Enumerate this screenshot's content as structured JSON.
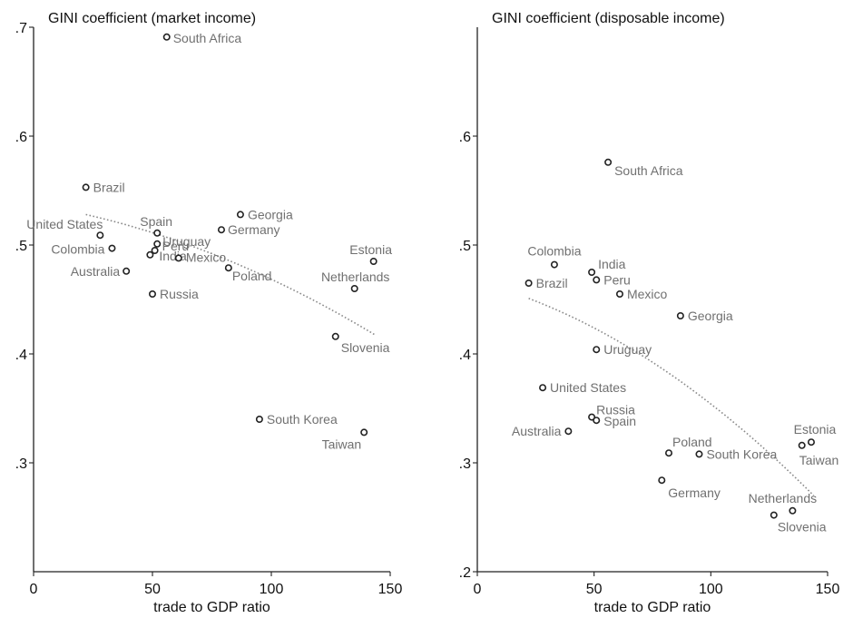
{
  "chart_data": [
    {
      "type": "scatter",
      "title": "GINI coefficient (market income)",
      "xlabel": "trade to GDP ratio",
      "ylabel": "",
      "xlim": [
        0,
        150
      ],
      "ylim": [
        0.2,
        0.7
      ],
      "xticks": [
        0,
        50,
        100,
        150
      ],
      "yticks": [
        0.3,
        0.4,
        0.5,
        0.6,
        0.7
      ],
      "xtick_labels": [
        "0",
        "50",
        "100",
        "150"
      ],
      "ytick_labels": [
        ".3",
        ".4",
        ".5",
        ".6",
        ".7"
      ],
      "grid": false,
      "fit_line": {
        "style": "dotted",
        "x": [
          22,
          144
        ],
        "y": [
          0.528,
          0.417
        ]
      },
      "points": [
        {
          "label": "South Africa",
          "x": 56,
          "y": 0.691
        },
        {
          "label": "Brazil",
          "x": 22,
          "y": 0.553
        },
        {
          "label": "United States",
          "x": 28,
          "y": 0.509
        },
        {
          "label": "Spain",
          "x": 52,
          "y": 0.511
        },
        {
          "label": "Uruguay",
          "x": 52,
          "y": 0.501
        },
        {
          "label": "Colombia",
          "x": 33,
          "y": 0.497
        },
        {
          "label": "Peru",
          "x": 51,
          "y": 0.495
        },
        {
          "label": "India",
          "x": 49,
          "y": 0.491
        },
        {
          "label": "Australia",
          "x": 39,
          "y": 0.476
        },
        {
          "label": "Mexico",
          "x": 61,
          "y": 0.488
        },
        {
          "label": "Georgia",
          "x": 87,
          "y": 0.528
        },
        {
          "label": "Germany",
          "x": 79,
          "y": 0.514
        },
        {
          "label": "Poland",
          "x": 82,
          "y": 0.479
        },
        {
          "label": "Estonia",
          "x": 143,
          "y": 0.485
        },
        {
          "label": "Netherlands",
          "x": 135,
          "y": 0.46
        },
        {
          "label": "Russia",
          "x": 50,
          "y": 0.455
        },
        {
          "label": "Slovenia",
          "x": 127,
          "y": 0.416
        },
        {
          "label": "South Korea",
          "x": 95,
          "y": 0.34
        },
        {
          "label": "Taiwan",
          "x": 139,
          "y": 0.328
        }
      ]
    },
    {
      "type": "scatter",
      "title": "GINI coefficient (disposable income)",
      "xlabel": "trade to GDP ratio",
      "ylabel": "",
      "xlim": [
        0,
        150
      ],
      "ylim": [
        0.2,
        0.7
      ],
      "xticks": [
        0,
        50,
        100,
        150
      ],
      "yticks": [
        0.2,
        0.3,
        0.4,
        0.5,
        0.6
      ],
      "xtick_labels": [
        "0",
        "50",
        "100",
        "150"
      ],
      "ytick_labels": [
        ".2",
        ".3",
        ".4",
        ".5",
        ".6"
      ],
      "grid": false,
      "fit_line": {
        "style": "dotted",
        "x": [
          22,
          144
        ],
        "y": [
          0.451,
          0.27
        ]
      },
      "points": [
        {
          "label": "South Africa",
          "x": 56,
          "y": 0.576
        },
        {
          "label": "Colombia",
          "x": 33,
          "y": 0.482
        },
        {
          "label": "India",
          "x": 49,
          "y": 0.475
        },
        {
          "label": "Peru",
          "x": 51,
          "y": 0.468
        },
        {
          "label": "Brazil",
          "x": 22,
          "y": 0.465
        },
        {
          "label": "Mexico",
          "x": 61,
          "y": 0.455
        },
        {
          "label": "Georgia",
          "x": 87,
          "y": 0.435
        },
        {
          "label": "Uruguay",
          "x": 51,
          "y": 0.404
        },
        {
          "label": "United States",
          "x": 28,
          "y": 0.369
        },
        {
          "label": "Russia",
          "x": 49,
          "y": 0.342
        },
        {
          "label": "Spain",
          "x": 51,
          "y": 0.339
        },
        {
          "label": "Australia",
          "x": 39,
          "y": 0.329
        },
        {
          "label": "Poland",
          "x": 82,
          "y": 0.309
        },
        {
          "label": "South Korea",
          "x": 95,
          "y": 0.308
        },
        {
          "label": "Germany",
          "x": 79,
          "y": 0.284
        },
        {
          "label": "Estonia",
          "x": 143,
          "y": 0.319
        },
        {
          "label": "Taiwan",
          "x": 139,
          "y": 0.316
        },
        {
          "label": "Netherlands",
          "x": 135,
          "y": 0.256
        },
        {
          "label": "Slovenia",
          "x": 127,
          "y": 0.252
        }
      ]
    }
  ]
}
